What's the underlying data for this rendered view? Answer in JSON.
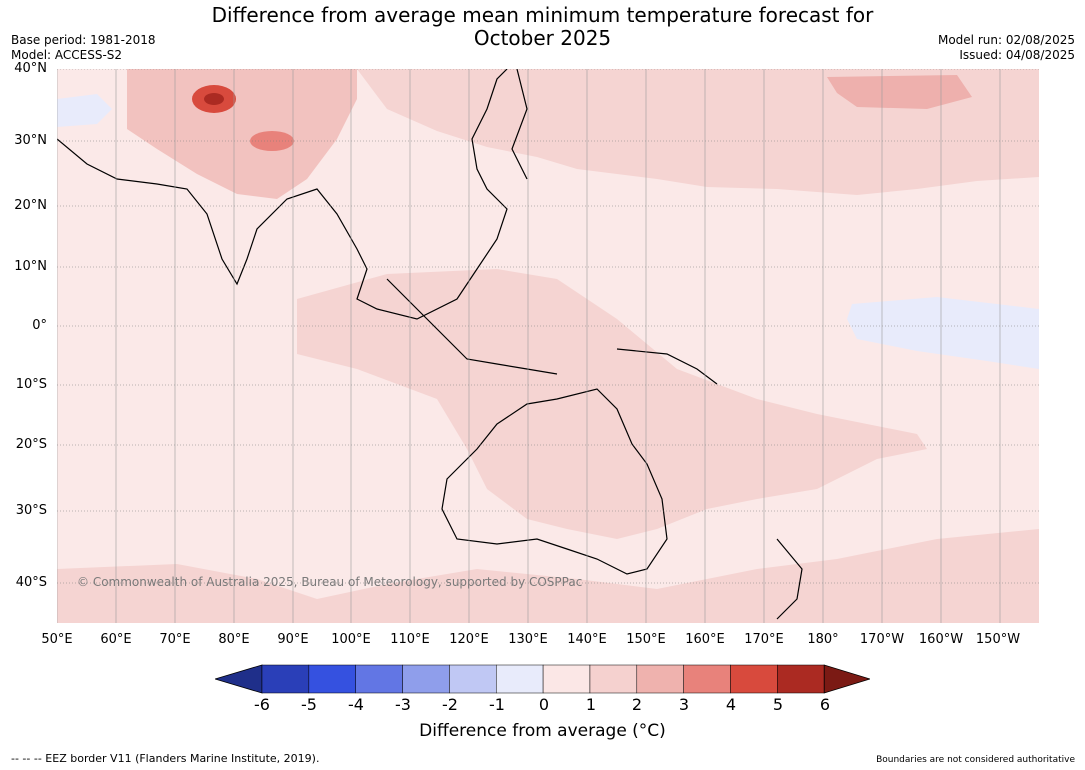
{
  "title_line1": "Difference from average mean minimum temperature forecast for",
  "title_line2": "October 2025",
  "meta_left": [
    "Base period: 1981-2018",
    "Model: ACCESS-S2"
  ],
  "meta_right": [
    "Model run: 02/08/2025",
    "Issued: 04/08/2025"
  ],
  "lat_labels": [
    "40°N",
    "30°N",
    "20°N",
    "10°N",
    "0°",
    "10°S",
    "20°S",
    "30°S",
    "40°S"
  ],
  "lon_labels": [
    "50°E",
    "60°E",
    "70°E",
    "80°E",
    "90°E",
    "100°E",
    "110°E",
    "120°E",
    "130°E",
    "140°E",
    "150°E",
    "160°E",
    "170°E",
    "180°",
    "170°W",
    "160°W",
    "150°W"
  ],
  "copyright": "© Commonwealth of Australia 2025, Bureau of Meteorology, supported by COSPPac",
  "colorbar": {
    "ticks": [
      "-6",
      "-5",
      "-4",
      "-3",
      "-2",
      "-1",
      "0",
      "1",
      "2",
      "3",
      "4",
      "5",
      "6"
    ],
    "colors": [
      "#1f2f8a",
      "#2a3fb8",
      "#3551e0",
      "#6276e4",
      "#8f9eeb",
      "#c0c8f4",
      "#e8ebfb",
      "#fbe7e6",
      "#f5d1cf",
      "#efb2ae",
      "#e8827b",
      "#d84a3d",
      "#ab2a22",
      "#7b1a14"
    ],
    "label": "Difference from average (°C)"
  },
  "footer_left": "--  --  -- EEZ border V11 (Flanders Marine Institute, 2019).",
  "footer_right": "Boundaries are not considered authoritative"
}
